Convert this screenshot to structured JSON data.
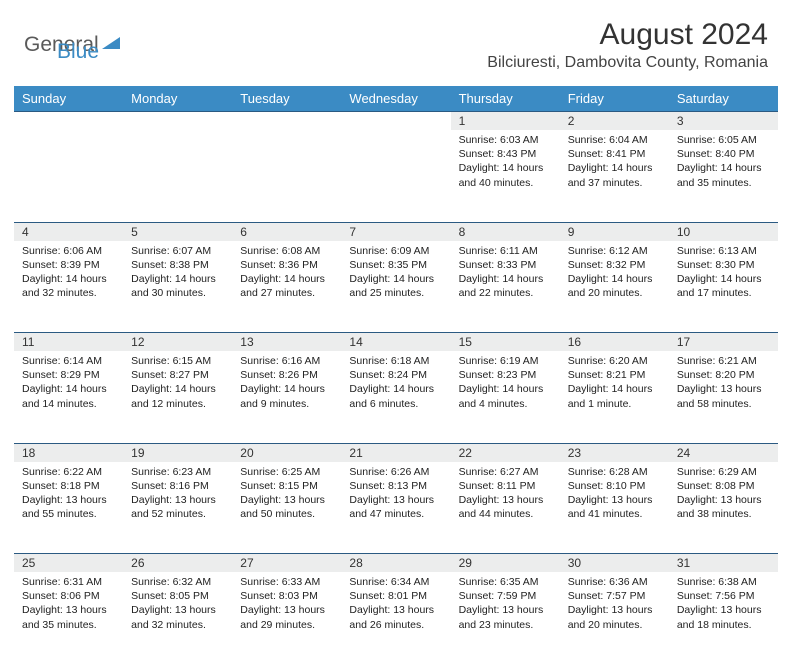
{
  "logo": {
    "text1": "General",
    "text2": "Blue"
  },
  "colors": {
    "header_bg": "#3b8bc4",
    "day_num_bg": "#eceded",
    "border_top": "#2b5a82",
    "logo_gray": "#5a5a5a",
    "logo_blue": "#3b8bc4"
  },
  "title": "August 2024",
  "location": "Bilciuresti, Dambovita County, Romania",
  "weekdays": [
    "Sunday",
    "Monday",
    "Tuesday",
    "Wednesday",
    "Thursday",
    "Friday",
    "Saturday"
  ],
  "weeks": [
    {
      "nums": [
        "",
        "",
        "",
        "",
        "1",
        "2",
        "3"
      ],
      "cells": [
        "",
        "",
        "",
        "",
        "Sunrise: 6:03 AM\nSunset: 8:43 PM\nDaylight: 14 hours and 40 minutes.",
        "Sunrise: 6:04 AM\nSunset: 8:41 PM\nDaylight: 14 hours and 37 minutes.",
        "Sunrise: 6:05 AM\nSunset: 8:40 PM\nDaylight: 14 hours and 35 minutes."
      ]
    },
    {
      "nums": [
        "4",
        "5",
        "6",
        "7",
        "8",
        "9",
        "10"
      ],
      "cells": [
        "Sunrise: 6:06 AM\nSunset: 8:39 PM\nDaylight: 14 hours and 32 minutes.",
        "Sunrise: 6:07 AM\nSunset: 8:38 PM\nDaylight: 14 hours and 30 minutes.",
        "Sunrise: 6:08 AM\nSunset: 8:36 PM\nDaylight: 14 hours and 27 minutes.",
        "Sunrise: 6:09 AM\nSunset: 8:35 PM\nDaylight: 14 hours and 25 minutes.",
        "Sunrise: 6:11 AM\nSunset: 8:33 PM\nDaylight: 14 hours and 22 minutes.",
        "Sunrise: 6:12 AM\nSunset: 8:32 PM\nDaylight: 14 hours and 20 minutes.",
        "Sunrise: 6:13 AM\nSunset: 8:30 PM\nDaylight: 14 hours and 17 minutes."
      ]
    },
    {
      "nums": [
        "11",
        "12",
        "13",
        "14",
        "15",
        "16",
        "17"
      ],
      "cells": [
        "Sunrise: 6:14 AM\nSunset: 8:29 PM\nDaylight: 14 hours and 14 minutes.",
        "Sunrise: 6:15 AM\nSunset: 8:27 PM\nDaylight: 14 hours and 12 minutes.",
        "Sunrise: 6:16 AM\nSunset: 8:26 PM\nDaylight: 14 hours and 9 minutes.",
        "Sunrise: 6:18 AM\nSunset: 8:24 PM\nDaylight: 14 hours and 6 minutes.",
        "Sunrise: 6:19 AM\nSunset: 8:23 PM\nDaylight: 14 hours and 4 minutes.",
        "Sunrise: 6:20 AM\nSunset: 8:21 PM\nDaylight: 14 hours and 1 minute.",
        "Sunrise: 6:21 AM\nSunset: 8:20 PM\nDaylight: 13 hours and 58 minutes."
      ]
    },
    {
      "nums": [
        "18",
        "19",
        "20",
        "21",
        "22",
        "23",
        "24"
      ],
      "cells": [
        "Sunrise: 6:22 AM\nSunset: 8:18 PM\nDaylight: 13 hours and 55 minutes.",
        "Sunrise: 6:23 AM\nSunset: 8:16 PM\nDaylight: 13 hours and 52 minutes.",
        "Sunrise: 6:25 AM\nSunset: 8:15 PM\nDaylight: 13 hours and 50 minutes.",
        "Sunrise: 6:26 AM\nSunset: 8:13 PM\nDaylight: 13 hours and 47 minutes.",
        "Sunrise: 6:27 AM\nSunset: 8:11 PM\nDaylight: 13 hours and 44 minutes.",
        "Sunrise: 6:28 AM\nSunset: 8:10 PM\nDaylight: 13 hours and 41 minutes.",
        "Sunrise: 6:29 AM\nSunset: 8:08 PM\nDaylight: 13 hours and 38 minutes."
      ]
    },
    {
      "nums": [
        "25",
        "26",
        "27",
        "28",
        "29",
        "30",
        "31"
      ],
      "cells": [
        "Sunrise: 6:31 AM\nSunset: 8:06 PM\nDaylight: 13 hours and 35 minutes.",
        "Sunrise: 6:32 AM\nSunset: 8:05 PM\nDaylight: 13 hours and 32 minutes.",
        "Sunrise: 6:33 AM\nSunset: 8:03 PM\nDaylight: 13 hours and 29 minutes.",
        "Sunrise: 6:34 AM\nSunset: 8:01 PM\nDaylight: 13 hours and 26 minutes.",
        "Sunrise: 6:35 AM\nSunset: 7:59 PM\nDaylight: 13 hours and 23 minutes.",
        "Sunrise: 6:36 AM\nSunset: 7:57 PM\nDaylight: 13 hours and 20 minutes.",
        "Sunrise: 6:38 AM\nSunset: 7:56 PM\nDaylight: 13 hours and 18 minutes."
      ]
    }
  ]
}
